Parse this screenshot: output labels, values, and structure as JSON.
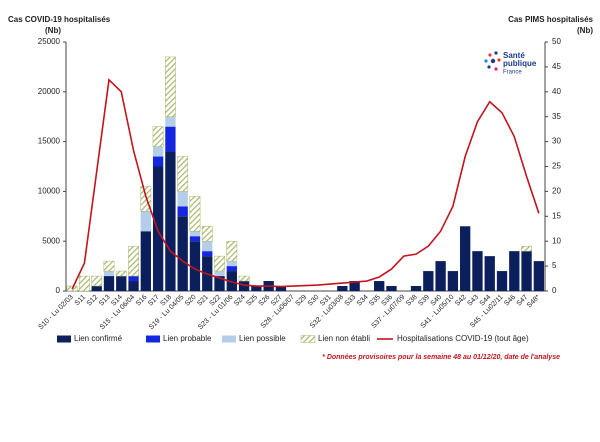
{
  "chart_data": {
    "type": "bar_line",
    "ylabel": "Cas  COVID-19 hospitalisés",
    "ylabel_unit": "(Nb)",
    "y2label": "Cas PIMS hospitalisés",
    "y2label_unit": "(Nb)",
    "logo": [
      "Santé",
      "publique",
      "France"
    ],
    "note": "* Données provisoires pour la semaine 48 au 01/12/20, date de l'analyse",
    "categories": [
      "S10 - Lu 02/03",
      "S11",
      "S12",
      "S13",
      "S14",
      "S15 - Lu 06/04",
      "S16",
      "S17",
      "S18",
      "S19 - Lu 04/05",
      "S20",
      "S21",
      "S22",
      "S23 - Lu 01/06",
      "S24",
      "S25",
      "S26",
      "S27",
      "S28 - Lu06/07",
      "S29",
      "S30",
      "S31",
      "S32 - Lu03/08",
      "S33",
      "S34",
      "S35",
      "S36",
      "S37 - Lu07/09",
      "S38",
      "S39",
      "S40",
      "S41 - Lu05/10",
      "S42",
      "S43",
      "S44",
      "S45 - Lu02/11",
      "S46",
      "S47",
      "S48*"
    ],
    "series": [
      {
        "name": "Lien confirmé",
        "color": "#0b1f5c",
        "axis": "y2",
        "values": [
          0,
          0,
          1,
          3,
          3,
          2,
          12,
          25,
          28,
          15,
          10,
          7,
          3,
          4,
          2,
          1,
          2,
          1,
          0,
          0,
          0,
          0,
          1,
          2,
          0,
          2,
          1,
          0,
          1,
          4,
          6,
          4,
          13,
          8,
          7,
          4,
          8,
          8,
          6
        ]
      },
      {
        "name": "Lien probable",
        "color": "#1426e0",
        "axis": "y2",
        "values": [
          0,
          0,
          0,
          0,
          0,
          1,
          0,
          2,
          5,
          2,
          1,
          1,
          0,
          1,
          0,
          0,
          0,
          0,
          0,
          0,
          0,
          0,
          0,
          0,
          0,
          0,
          0,
          0,
          0,
          0,
          0,
          0,
          0,
          0,
          0,
          0,
          0,
          0,
          0
        ]
      },
      {
        "name": "Lien possible",
        "color": "#b4cde8",
        "axis": "y2",
        "values": [
          0,
          0,
          0,
          1,
          0,
          0,
          4,
          2,
          2,
          3,
          1,
          2,
          1,
          1,
          0,
          0,
          0,
          0,
          0,
          0,
          0,
          0,
          0,
          0,
          0,
          0,
          0,
          0,
          0,
          0,
          0,
          0,
          0,
          0,
          0,
          0,
          0,
          0,
          0
        ]
      },
      {
        "name": "Lien non établi",
        "color": "#a8b56a",
        "hatch": true,
        "axis": "y2",
        "values": [
          1,
          3,
          2,
          2,
          1,
          6,
          5,
          4,
          12,
          7,
          7,
          3,
          3,
          4,
          1,
          0,
          0,
          0,
          0,
          0,
          0,
          0,
          0,
          0,
          0,
          0,
          0,
          0,
          0,
          0,
          0,
          0,
          0,
          0,
          0,
          0,
          0,
          1,
          0
        ]
      },
      {
        "name": "Hospitalisations COVID-19 (tout âge)",
        "color": "#c0161d",
        "type": "line",
        "axis": "y",
        "values": [
          200,
          2800,
          12000,
          21200,
          20000,
          14100,
          9500,
          6000,
          4000,
          3000,
          2200,
          1700,
          1300,
          900,
          600,
          500,
          500,
          450,
          500,
          550,
          600,
          700,
          800,
          900,
          1000,
          1400,
          2200,
          3500,
          3700,
          4500,
          6000,
          8500,
          13500,
          17000,
          19000,
          17900,
          15500,
          11500,
          7800
        ]
      }
    ],
    "ylim": [
      0,
      25000
    ],
    "yticks": [
      0,
      5000,
      10000,
      15000,
      20000,
      25000
    ],
    "y2lim": [
      0,
      50
    ],
    "y2ticks": [
      0,
      5,
      10,
      15,
      20,
      25,
      30,
      35,
      40,
      45,
      50
    ]
  }
}
